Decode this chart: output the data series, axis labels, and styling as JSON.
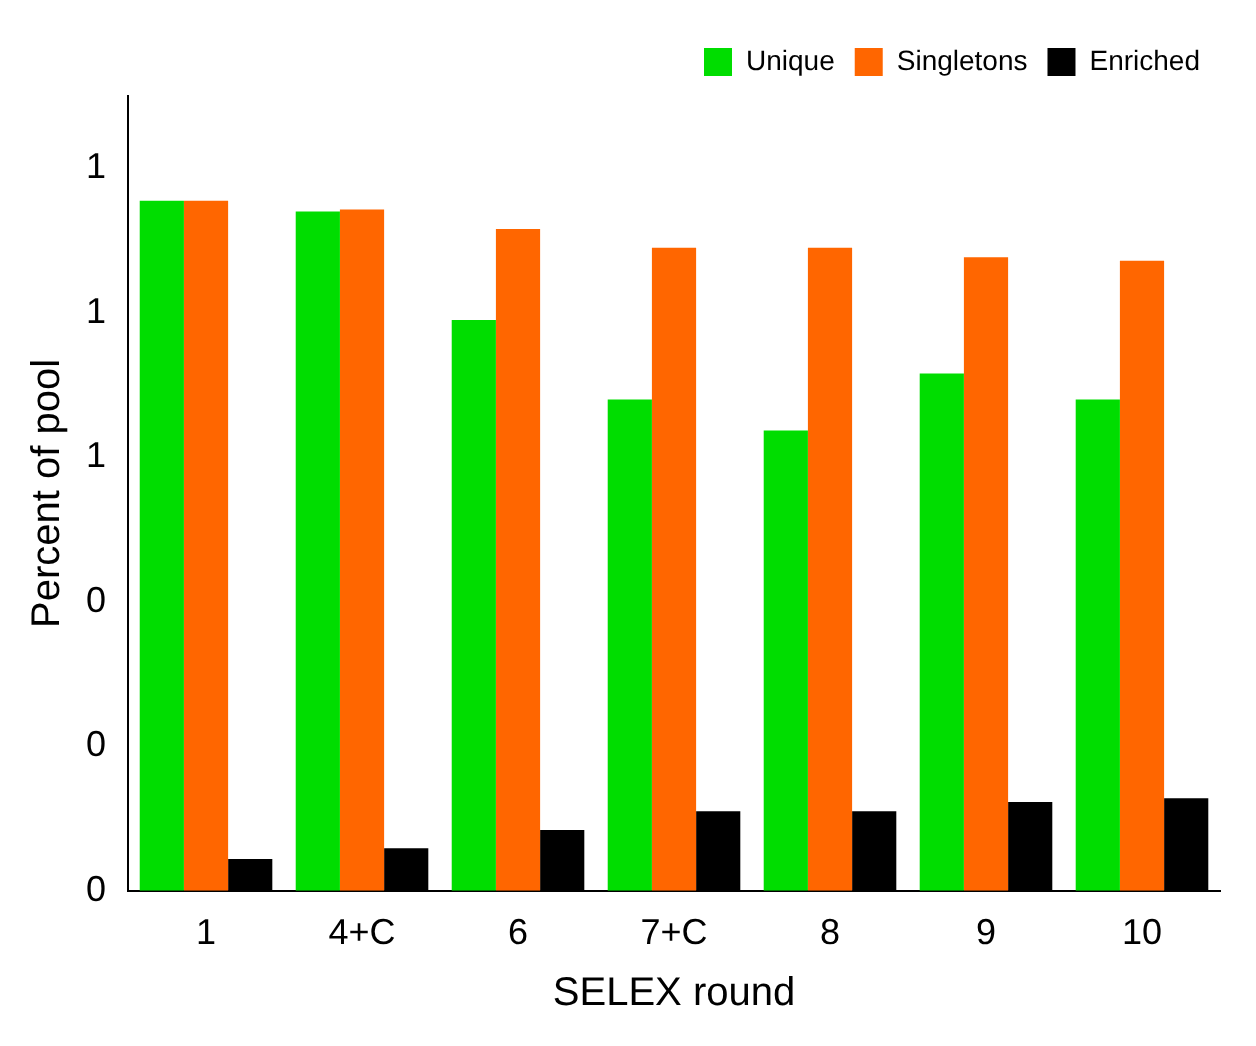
{
  "chart_data": {
    "type": "bar",
    "xlabel": "SELEX round",
    "ylabel": "Percent of pool",
    "categories": [
      "1",
      "4+C",
      "6",
      "7+C",
      "8",
      "9",
      "10"
    ],
    "series": [
      {
        "name": "Unique",
        "color": "#00dd00",
        "values": [
          0.955,
          0.94,
          0.79,
          0.68,
          0.637,
          0.716,
          0.68
        ]
      },
      {
        "name": "Singletons",
        "color": "#ff6600",
        "values": [
          0.955,
          0.943,
          0.916,
          0.89,
          0.89,
          0.877,
          0.872
        ]
      },
      {
        "name": "Enriched",
        "color": "#000000",
        "values": [
          0.044,
          0.059,
          0.084,
          0.11,
          0.11,
          0.123,
          0.128
        ]
      }
    ],
    "ylim": [
      0,
      1.1
    ],
    "yticks": [
      {
        "value": 0,
        "label": "0"
      },
      {
        "value": 0.2,
        "label": "0"
      },
      {
        "value": 0.4,
        "label": "0"
      },
      {
        "value": 0.6,
        "label": "1"
      },
      {
        "value": 0.8,
        "label": "1"
      },
      {
        "value": 1.0,
        "label": "1"
      }
    ],
    "grid": false,
    "legend": "top right"
  }
}
